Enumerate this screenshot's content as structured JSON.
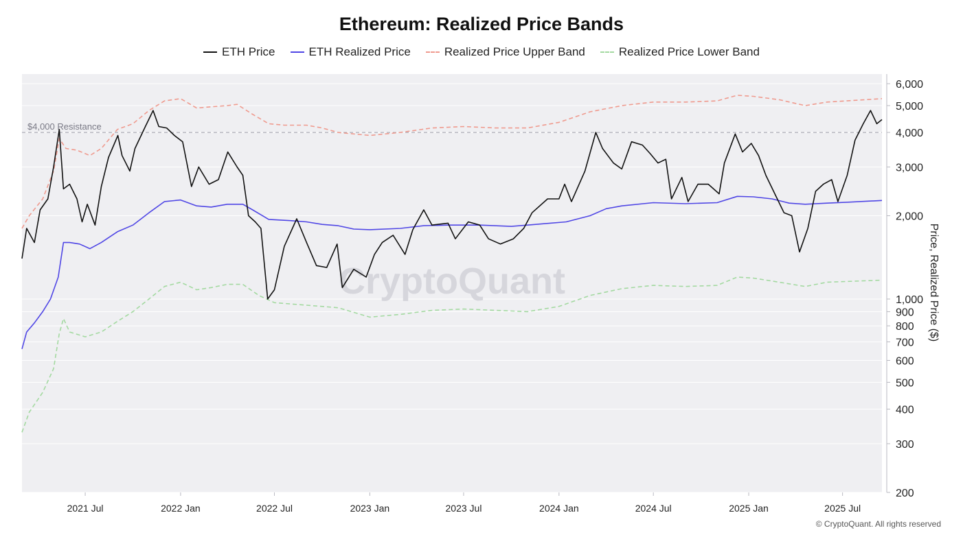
{
  "chart_data": {
    "type": "line",
    "title": "Ethereum: Realized Price Bands",
    "xlabel": "",
    "ylabel": "Price, Realized Price ($)",
    "yscale": "log",
    "ylim": [
      200,
      6500
    ],
    "xlim": [
      "2021-03-01",
      "2025-09-15"
    ],
    "legend_position": "top",
    "grid": true,
    "x_ticks": [
      {
        "date": "2021-07-01",
        "label": "2021 Jul"
      },
      {
        "date": "2022-01-01",
        "label": "2022 Jan"
      },
      {
        "date": "2022-07-01",
        "label": "2022 Jul"
      },
      {
        "date": "2023-01-01",
        "label": "2023 Jan"
      },
      {
        "date": "2023-07-01",
        "label": "2023 Jul"
      },
      {
        "date": "2024-01-01",
        "label": "2024 Jan"
      },
      {
        "date": "2024-07-01",
        "label": "2024 Jul"
      },
      {
        "date": "2025-01-01",
        "label": "2025 Jan"
      },
      {
        "date": "2025-07-01",
        "label": "2025 Jul"
      }
    ],
    "y_ticks": [
      {
        "value": 200,
        "label": "200"
      },
      {
        "value": 300,
        "label": "300"
      },
      {
        "value": 400,
        "label": "400"
      },
      {
        "value": 500,
        "label": "500"
      },
      {
        "value": 600,
        "label": "600"
      },
      {
        "value": 700,
        "label": "700"
      },
      {
        "value": 800,
        "label": "800"
      },
      {
        "value": 900,
        "label": "900"
      },
      {
        "value": 1000,
        "label": "1,000"
      },
      {
        "value": 2000,
        "label": "2,000"
      },
      {
        "value": 3000,
        "label": "3,000"
      },
      {
        "value": 4000,
        "label": "4,000"
      },
      {
        "value": 5000,
        "label": "5,000"
      },
      {
        "value": 6000,
        "label": "6,000"
      }
    ],
    "annotations": [
      {
        "type": "hline",
        "value": 4000,
        "label": "$4,000 Resistance",
        "color": "#9a9aa6"
      }
    ],
    "series": [
      {
        "name": "ETH Price",
        "color": "#111111",
        "dash": "solid",
        "points": [
          [
            "2021-03-01",
            1400
          ],
          [
            "2021-03-10",
            1800
          ],
          [
            "2021-03-25",
            1600
          ],
          [
            "2021-04-05",
            2100
          ],
          [
            "2021-04-20",
            2300
          ],
          [
            "2021-05-01",
            3000
          ],
          [
            "2021-05-12",
            4100
          ],
          [
            "2021-05-20",
            2500
          ],
          [
            "2021-06-01",
            2600
          ],
          [
            "2021-06-15",
            2300
          ],
          [
            "2021-06-25",
            1900
          ],
          [
            "2021-07-05",
            2200
          ],
          [
            "2021-07-20",
            1850
          ],
          [
            "2021-08-01",
            2550
          ],
          [
            "2021-08-15",
            3250
          ],
          [
            "2021-09-02",
            3900
          ],
          [
            "2021-09-10",
            3300
          ],
          [
            "2021-09-25",
            2900
          ],
          [
            "2021-10-05",
            3500
          ],
          [
            "2021-10-25",
            4200
          ],
          [
            "2021-11-09",
            4800
          ],
          [
            "2021-11-20",
            4200
          ],
          [
            "2021-12-05",
            4150
          ],
          [
            "2021-12-20",
            3900
          ],
          [
            "2022-01-05",
            3700
          ],
          [
            "2022-01-22",
            2550
          ],
          [
            "2022-02-05",
            3000
          ],
          [
            "2022-02-25",
            2600
          ],
          [
            "2022-03-15",
            2700
          ],
          [
            "2022-04-02",
            3400
          ],
          [
            "2022-04-20",
            3000
          ],
          [
            "2022-05-01",
            2800
          ],
          [
            "2022-05-12",
            2000
          ],
          [
            "2022-05-25",
            1900
          ],
          [
            "2022-06-05",
            1800
          ],
          [
            "2022-06-18",
            1000
          ],
          [
            "2022-07-01",
            1080
          ],
          [
            "2022-07-20",
            1550
          ],
          [
            "2022-08-13",
            1950
          ],
          [
            "2022-09-01",
            1600
          ],
          [
            "2022-09-20",
            1320
          ],
          [
            "2022-10-10",
            1300
          ],
          [
            "2022-10-30",
            1580
          ],
          [
            "2022-11-09",
            1100
          ],
          [
            "2022-12-01",
            1280
          ],
          [
            "2022-12-25",
            1200
          ],
          [
            "2023-01-10",
            1450
          ],
          [
            "2023-01-25",
            1600
          ],
          [
            "2023-02-15",
            1700
          ],
          [
            "2023-03-10",
            1450
          ],
          [
            "2023-03-25",
            1780
          ],
          [
            "2023-04-15",
            2100
          ],
          [
            "2023-05-01",
            1850
          ],
          [
            "2023-06-01",
            1880
          ],
          [
            "2023-06-15",
            1650
          ],
          [
            "2023-07-10",
            1900
          ],
          [
            "2023-08-01",
            1850
          ],
          [
            "2023-08-18",
            1650
          ],
          [
            "2023-09-10",
            1580
          ],
          [
            "2023-10-05",
            1650
          ],
          [
            "2023-10-25",
            1800
          ],
          [
            "2023-11-10",
            2050
          ],
          [
            "2023-12-10",
            2300
          ],
          [
            "2024-01-01",
            2300
          ],
          [
            "2024-01-12",
            2600
          ],
          [
            "2024-01-25",
            2250
          ],
          [
            "2024-02-20",
            2900
          ],
          [
            "2024-03-12",
            4000
          ],
          [
            "2024-03-25",
            3500
          ],
          [
            "2024-04-15",
            3100
          ],
          [
            "2024-05-01",
            2950
          ],
          [
            "2024-05-20",
            3700
          ],
          [
            "2024-06-10",
            3600
          ],
          [
            "2024-06-25",
            3350
          ],
          [
            "2024-07-10",
            3100
          ],
          [
            "2024-07-25",
            3200
          ],
          [
            "2024-08-05",
            2300
          ],
          [
            "2024-08-25",
            2750
          ],
          [
            "2024-09-06",
            2250
          ],
          [
            "2024-09-25",
            2600
          ],
          [
            "2024-10-15",
            2600
          ],
          [
            "2024-11-05",
            2400
          ],
          [
            "2024-11-15",
            3100
          ],
          [
            "2024-12-06",
            3950
          ],
          [
            "2024-12-20",
            3400
          ],
          [
            "2025-01-06",
            3650
          ],
          [
            "2025-01-20",
            3300
          ],
          [
            "2025-02-03",
            2800
          ],
          [
            "2025-02-25",
            2300
          ],
          [
            "2025-03-10",
            2050
          ],
          [
            "2025-03-25",
            2000
          ],
          [
            "2025-04-09",
            1480
          ],
          [
            "2025-04-25",
            1800
          ],
          [
            "2025-05-10",
            2450
          ],
          [
            "2025-05-25",
            2600
          ],
          [
            "2025-06-10",
            2700
          ],
          [
            "2025-06-22",
            2250
          ],
          [
            "2025-07-10",
            2800
          ],
          [
            "2025-07-25",
            3750
          ],
          [
            "2025-08-10",
            4300
          ],
          [
            "2025-08-24",
            4800
          ],
          [
            "2025-09-05",
            4300
          ],
          [
            "2025-09-15",
            4450
          ]
        ]
      },
      {
        "name": "ETH Realized Price",
        "color": "#4f46e5",
        "dash": "solid",
        "points": [
          [
            "2021-03-01",
            660
          ],
          [
            "2021-03-10",
            760
          ],
          [
            "2021-03-25",
            820
          ],
          [
            "2021-04-10",
            900
          ],
          [
            "2021-04-25",
            1000
          ],
          [
            "2021-05-10",
            1200
          ],
          [
            "2021-05-20",
            1600
          ],
          [
            "2021-06-01",
            1600
          ],
          [
            "2021-06-20",
            1580
          ],
          [
            "2021-07-10",
            1520
          ],
          [
            "2021-08-01",
            1600
          ],
          [
            "2021-09-01",
            1750
          ],
          [
            "2021-10-01",
            1850
          ],
          [
            "2021-11-01",
            2050
          ],
          [
            "2021-12-01",
            2250
          ],
          [
            "2022-01-01",
            2280
          ],
          [
            "2022-02-01",
            2170
          ],
          [
            "2022-03-01",
            2150
          ],
          [
            "2022-04-01",
            2200
          ],
          [
            "2022-05-01",
            2200
          ],
          [
            "2022-05-20",
            2100
          ],
          [
            "2022-06-20",
            1940
          ],
          [
            "2022-08-01",
            1920
          ],
          [
            "2022-09-01",
            1900
          ],
          [
            "2022-10-01",
            1860
          ],
          [
            "2022-11-01",
            1840
          ],
          [
            "2022-12-01",
            1790
          ],
          [
            "2023-01-01",
            1780
          ],
          [
            "2023-03-01",
            1800
          ],
          [
            "2023-04-15",
            1840
          ],
          [
            "2023-06-01",
            1850
          ],
          [
            "2023-08-01",
            1850
          ],
          [
            "2023-10-01",
            1830
          ],
          [
            "2023-12-01",
            1870
          ],
          [
            "2024-01-15",
            1900
          ],
          [
            "2024-03-01",
            2000
          ],
          [
            "2024-04-01",
            2120
          ],
          [
            "2024-05-01",
            2170
          ],
          [
            "2024-07-01",
            2230
          ],
          [
            "2024-09-01",
            2210
          ],
          [
            "2024-11-01",
            2230
          ],
          [
            "2024-12-10",
            2350
          ],
          [
            "2025-01-10",
            2340
          ],
          [
            "2025-02-15",
            2300
          ],
          [
            "2025-03-20",
            2220
          ],
          [
            "2025-04-20",
            2200
          ],
          [
            "2025-06-01",
            2220
          ],
          [
            "2025-07-15",
            2240
          ],
          [
            "2025-09-15",
            2270
          ]
        ]
      },
      {
        "name": "Realized Price Upper Band",
        "color": "#ef9a8e",
        "dash": "dashed",
        "points": [
          [
            "2021-03-01",
            1800
          ],
          [
            "2021-03-15",
            2000
          ],
          [
            "2021-04-10",
            2300
          ],
          [
            "2021-05-01",
            2900
          ],
          [
            "2021-05-12",
            3800
          ],
          [
            "2021-05-25",
            3500
          ],
          [
            "2021-06-15",
            3450
          ],
          [
            "2021-07-10",
            3300
          ],
          [
            "2021-08-01",
            3500
          ],
          [
            "2021-09-01",
            4100
          ],
          [
            "2021-10-01",
            4300
          ],
          [
            "2021-11-01",
            4800
          ],
          [
            "2021-12-01",
            5200
          ],
          [
            "2022-01-01",
            5300
          ],
          [
            "2022-02-01",
            4900
          ],
          [
            "2022-03-01",
            4950
          ],
          [
            "2022-04-01",
            5000
          ],
          [
            "2022-04-20",
            5050
          ],
          [
            "2022-05-20",
            4650
          ],
          [
            "2022-06-20",
            4300
          ],
          [
            "2022-07-20",
            4250
          ],
          [
            "2022-09-01",
            4250
          ],
          [
            "2022-10-01",
            4150
          ],
          [
            "2022-11-01",
            4000
          ],
          [
            "2023-01-01",
            3900
          ],
          [
            "2023-03-01",
            4000
          ],
          [
            "2023-05-01",
            4150
          ],
          [
            "2023-07-01",
            4200
          ],
          [
            "2023-09-01",
            4150
          ],
          [
            "2023-11-01",
            4150
          ],
          [
            "2024-01-01",
            4350
          ],
          [
            "2024-02-01",
            4550
          ],
          [
            "2024-03-01",
            4750
          ],
          [
            "2024-05-01",
            5000
          ],
          [
            "2024-07-01",
            5150
          ],
          [
            "2024-09-01",
            5150
          ],
          [
            "2024-11-01",
            5200
          ],
          [
            "2024-12-10",
            5450
          ],
          [
            "2025-01-10",
            5400
          ],
          [
            "2025-03-01",
            5250
          ],
          [
            "2025-04-20",
            5000
          ],
          [
            "2025-06-01",
            5150
          ],
          [
            "2025-09-15",
            5300
          ]
        ]
      },
      {
        "name": "Realized Price Lower Band",
        "color": "#a3d9a0",
        "dash": "dashed",
        "points": [
          [
            "2021-03-01",
            330
          ],
          [
            "2021-03-15",
            390
          ],
          [
            "2021-04-10",
            460
          ],
          [
            "2021-05-01",
            560
          ],
          [
            "2021-05-12",
            750
          ],
          [
            "2021-05-20",
            850
          ],
          [
            "2021-06-01",
            760
          ],
          [
            "2021-07-01",
            730
          ],
          [
            "2021-08-01",
            760
          ],
          [
            "2021-09-01",
            830
          ],
          [
            "2021-10-01",
            900
          ],
          [
            "2021-11-01",
            1000
          ],
          [
            "2021-12-01",
            1110
          ],
          [
            "2022-01-01",
            1150
          ],
          [
            "2022-02-01",
            1080
          ],
          [
            "2022-03-01",
            1100
          ],
          [
            "2022-04-01",
            1130
          ],
          [
            "2022-05-01",
            1130
          ],
          [
            "2022-06-01",
            1030
          ],
          [
            "2022-07-01",
            970
          ],
          [
            "2022-09-01",
            950
          ],
          [
            "2022-11-01",
            930
          ],
          [
            "2023-01-01",
            860
          ],
          [
            "2023-03-01",
            880
          ],
          [
            "2023-05-01",
            910
          ],
          [
            "2023-07-01",
            920
          ],
          [
            "2023-09-01",
            910
          ],
          [
            "2023-11-01",
            900
          ],
          [
            "2024-01-01",
            940
          ],
          [
            "2024-03-01",
            1030
          ],
          [
            "2024-05-01",
            1090
          ],
          [
            "2024-07-01",
            1120
          ],
          [
            "2024-09-01",
            1110
          ],
          [
            "2024-11-01",
            1120
          ],
          [
            "2024-12-10",
            1200
          ],
          [
            "2025-01-10",
            1190
          ],
          [
            "2025-03-01",
            1150
          ],
          [
            "2025-04-20",
            1110
          ],
          [
            "2025-06-01",
            1150
          ],
          [
            "2025-09-15",
            1170
          ]
        ]
      }
    ]
  },
  "legend": [
    {
      "label": "ETH Price",
      "color": "#111111",
      "style": "solid"
    },
    {
      "label": "ETH Realized Price",
      "color": "#4f46e5",
      "style": "solid"
    },
    {
      "label": "Realized Price Upper Band",
      "color": "#ef9a8e",
      "style": "dashed"
    },
    {
      "label": "Realized Price Lower Band",
      "color": "#a3d9a0",
      "style": "dashed"
    }
  ],
  "watermark": "CryptoQuant",
  "copyright": "© CryptoQuant. All rights reserved"
}
